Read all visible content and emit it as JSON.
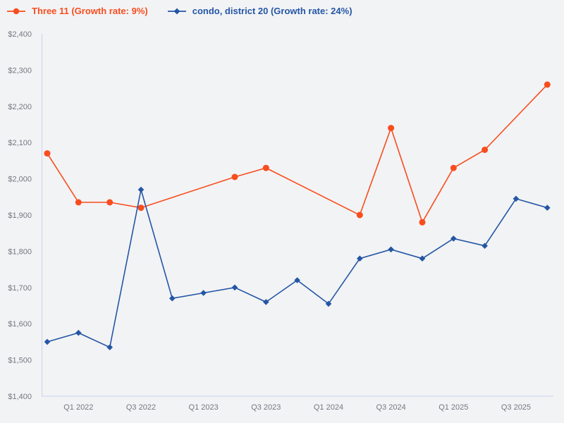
{
  "colors": {
    "background": "#f2f3f5",
    "axis": "#c7d2e9",
    "tick_text": "#73787f",
    "series_orange": "#f84d1e",
    "series_blue": "#2456a5"
  },
  "chart_data": {
    "type": "line",
    "title": "",
    "xlabel": "",
    "ylabel": "",
    "grid": false,
    "legend_position": "top-left",
    "ylim": [
      1400,
      2400
    ],
    "ytick_step": 100,
    "ytick_labels": [
      "$2,400",
      "$2,300",
      "$2,200",
      "$2,100",
      "$2,000",
      "$1,900",
      "$1,800",
      "$1,700",
      "$1,600",
      "$1,500",
      "$1,400"
    ],
    "timeline": [
      "Q4 2021",
      "Q1 2022",
      "Q2 2022",
      "Q3 2022",
      "Q4 2022",
      "Q1 2023",
      "Q2 2023",
      "Q3 2023",
      "Q4 2023",
      "Q1 2024",
      "Q2 2024",
      "Q3 2024",
      "Q4 2024",
      "Q1 2025",
      "Q2 2025",
      "Q3 2025",
      "Q4 2025"
    ],
    "x_tick_labels": [
      "Q1 2022",
      "Q3 2022",
      "Q1 2023",
      "Q3 2023",
      "Q1 2024",
      "Q3 2024",
      "Q1 2025",
      "Q3 2025"
    ],
    "series": [
      {
        "name": "Three 11 (Growth rate: 9%)",
        "growth_rate": "9%",
        "color": "#f84d1e",
        "marker": "circle",
        "points": [
          {
            "t": "Q4 2021",
            "v": 2070
          },
          {
            "t": "Q1 2022",
            "v": 1935
          },
          {
            "t": "Q2 2022",
            "v": 1935
          },
          {
            "t": "Q3 2022",
            "v": 1920
          },
          {
            "t": "Q2 2023",
            "v": 2005
          },
          {
            "t": "Q3 2023",
            "v": 2030
          },
          {
            "t": "Q2 2024",
            "v": 1900
          },
          {
            "t": "Q3 2024",
            "v": 2140
          },
          {
            "t": "Q4 2024",
            "v": 1880
          },
          {
            "t": "Q1 2025",
            "v": 2030
          },
          {
            "t": "Q2 2025",
            "v": 2080
          },
          {
            "t": "Q4 2025",
            "v": 2260
          }
        ]
      },
      {
        "name": "condo, district 20 (Growth rate: 24%)",
        "growth_rate": "24%",
        "color": "#2456a5",
        "marker": "diamond",
        "points": [
          {
            "t": "Q4 2021",
            "v": 1550
          },
          {
            "t": "Q1 2022",
            "v": 1575
          },
          {
            "t": "Q2 2022",
            "v": 1535
          },
          {
            "t": "Q3 2022",
            "v": 1970
          },
          {
            "t": "Q4 2022",
            "v": 1670
          },
          {
            "t": "Q1 2023",
            "v": 1685
          },
          {
            "t": "Q2 2023",
            "v": 1700
          },
          {
            "t": "Q3 2023",
            "v": 1660
          },
          {
            "t": "Q4 2023",
            "v": 1720
          },
          {
            "t": "Q1 2024",
            "v": 1655
          },
          {
            "t": "Q2 2024",
            "v": 1780
          },
          {
            "t": "Q3 2024",
            "v": 1805
          },
          {
            "t": "Q4 2024",
            "v": 1780
          },
          {
            "t": "Q1 2025",
            "v": 1835
          },
          {
            "t": "Q2 2025",
            "v": 1815
          },
          {
            "t": "Q3 2025",
            "v": 1945
          },
          {
            "t": "Q4 2025",
            "v": 1920
          }
        ]
      }
    ]
  }
}
